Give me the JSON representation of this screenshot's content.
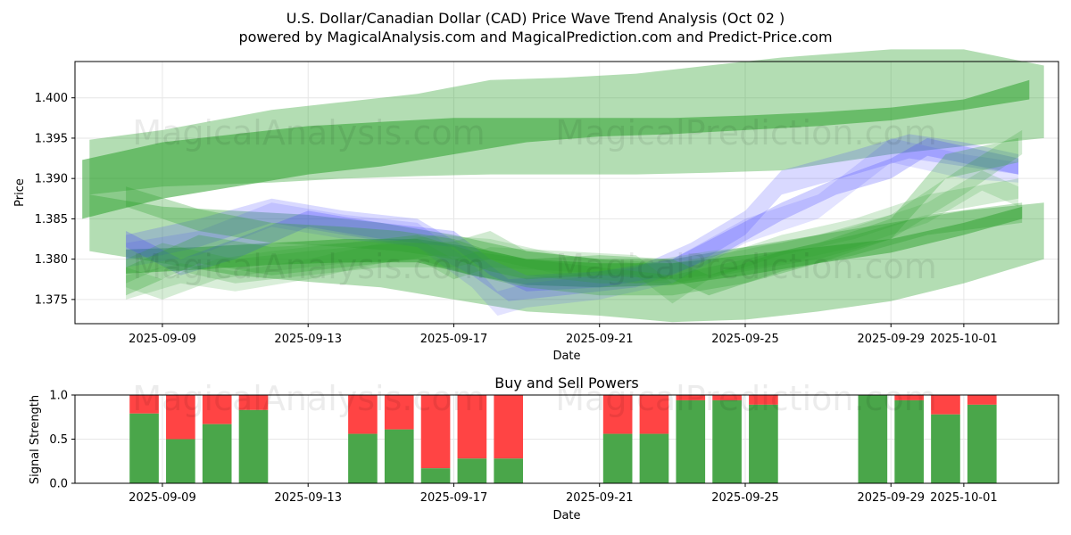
{
  "title_line1": "U.S. Dollar/Canadian Dollar (CAD) Price Wave Trend Analysis (Oct 02 )",
  "title_line2": "powered by MagicalAnalysis.com and MagicalPrediction.com and Predict-Price.com",
  "watermarks": [
    "MagicalAnalysis.com",
    "MagicalPrediction.com"
  ],
  "colors": {
    "green_band": "#2ca02c",
    "blue_band": "#4040ff",
    "buy": "#4aa64a",
    "sell": "#ff4444",
    "grid": "#e6e6e6"
  },
  "chart_data": [
    {
      "type": "area",
      "title": "",
      "xlabel": "Date",
      "ylabel": "Price",
      "x_start": "2025-09-07",
      "xlim_days": [
        -0.4,
        26.6
      ],
      "ylim": [
        1.372,
        1.4045
      ],
      "x_ticks": [
        {
          "day": 2,
          "label": "2025-09-09"
        },
        {
          "day": 6,
          "label": "2025-09-13"
        },
        {
          "day": 10,
          "label": "2025-09-17"
        },
        {
          "day": 14,
          "label": "2025-09-21"
        },
        {
          "day": 18,
          "label": "2025-09-25"
        },
        {
          "day": 22,
          "label": "2025-09-29"
        },
        {
          "day": 24,
          "label": "2025-10-01"
        }
      ],
      "y_ticks": [
        {
          "value": 1.375,
          "label": "1.375"
        },
        {
          "value": 1.38,
          "label": "1.380"
        },
        {
          "value": 1.385,
          "label": "1.385"
        },
        {
          "value": 1.39,
          "label": "1.390"
        },
        {
          "value": 1.395,
          "label": "1.395"
        },
        {
          "value": 1.4,
          "label": "1.400"
        }
      ],
      "series": [
        {
          "name": "upper-wide-band",
          "color": "green",
          "opacity": 0.36,
          "x": [
            0,
            2,
            5,
            7,
            9,
            11,
            13,
            15,
            17,
            19,
            22,
            24,
            26.2
          ],
          "upper": [
            1.3948,
            1.396,
            1.3985,
            1.3995,
            1.4005,
            1.4022,
            1.4025,
            1.403,
            1.404,
            1.405,
            1.406,
            1.406,
            1.404
          ],
          "lower": [
            1.388,
            1.389,
            1.3895,
            1.39,
            1.3903,
            1.3905,
            1.3905,
            1.3905,
            1.3907,
            1.391,
            1.393,
            1.394,
            1.395
          ]
        },
        {
          "name": "upper-narrow-band",
          "color": "green",
          "opacity": 0.55,
          "x": [
            -0.2,
            2,
            4,
            6,
            8,
            10,
            12,
            14,
            16,
            18,
            20,
            22,
            24,
            25.8
          ],
          "upper": [
            1.3923,
            1.3945,
            1.3955,
            1.3965,
            1.397,
            1.3975,
            1.3975,
            1.3975,
            1.3975,
            1.3978,
            1.3982,
            1.3988,
            1.3998,
            1.4022
          ],
          "lower": [
            1.385,
            1.3875,
            1.389,
            1.3905,
            1.3915,
            1.393,
            1.3945,
            1.3952,
            1.3955,
            1.396,
            1.3965,
            1.3972,
            1.3985,
            1.3998
          ]
        },
        {
          "name": "lower-wide-band",
          "color": "green",
          "opacity": 0.36,
          "x": [
            0,
            2,
            4,
            6,
            8,
            10,
            12,
            14,
            16,
            18,
            20,
            22,
            24,
            26.2
          ],
          "upper": [
            1.388,
            1.3865,
            1.386,
            1.3855,
            1.3845,
            1.383,
            1.381,
            1.38,
            1.38,
            1.3815,
            1.383,
            1.3845,
            1.386,
            1.387
          ],
          "lower": [
            1.381,
            1.3795,
            1.378,
            1.3772,
            1.3765,
            1.375,
            1.3735,
            1.373,
            1.3722,
            1.3725,
            1.3735,
            1.3748,
            1.377,
            1.38
          ]
        },
        {
          "name": "lower-narrow-band",
          "color": "green",
          "opacity": 0.5,
          "x": [
            1,
            3,
            5,
            7,
            9,
            10.5,
            12,
            14,
            16,
            18,
            20,
            22,
            24,
            25.6
          ],
          "upper": [
            1.3812,
            1.3815,
            1.382,
            1.3825,
            1.3825,
            1.3815,
            1.38,
            1.3795,
            1.3795,
            1.3805,
            1.3815,
            1.3825,
            1.3845,
            1.3865
          ],
          "lower": [
            1.3782,
            1.3787,
            1.3793,
            1.3796,
            1.3796,
            1.378,
            1.3768,
            1.3765,
            1.3768,
            1.378,
            1.3795,
            1.3808,
            1.383,
            1.385
          ]
        },
        {
          "name": "wave-blue-1",
          "color": "blue",
          "opacity": 0.2,
          "x": [
            1,
            2,
            3,
            5,
            7,
            9,
            10.5,
            11.5,
            13,
            15,
            16.5,
            18,
            19,
            21,
            22.5,
            24,
            25.5
          ],
          "upper": [
            1.383,
            1.384,
            1.385,
            1.3875,
            1.386,
            1.385,
            1.381,
            1.3775,
            1.378,
            1.379,
            1.382,
            1.386,
            1.391,
            1.3935,
            1.3955,
            1.3945,
            1.393
          ],
          "lower": [
            1.38,
            1.3805,
            1.3815,
            1.3845,
            1.383,
            1.3815,
            1.378,
            1.3748,
            1.3755,
            1.3765,
            1.379,
            1.383,
            1.388,
            1.3905,
            1.3925,
            1.3915,
            1.3905
          ]
        },
        {
          "name": "wave-blue-2",
          "color": "blue",
          "opacity": 0.25,
          "x": [
            1,
            2.5,
            4,
            6,
            8,
            10,
            11,
            12,
            14,
            16,
            17.5,
            19,
            20.5,
            22,
            23,
            25.5
          ],
          "upper": [
            1.3835,
            1.38,
            1.3825,
            1.386,
            1.3845,
            1.3835,
            1.38,
            1.378,
            1.3785,
            1.38,
            1.3835,
            1.387,
            1.39,
            1.3925,
            1.395,
            1.3925
          ],
          "lower": [
            1.3815,
            1.378,
            1.38,
            1.384,
            1.3825,
            1.3815,
            1.378,
            1.376,
            1.3765,
            1.378,
            1.381,
            1.3848,
            1.388,
            1.39,
            1.3928,
            1.3905
          ]
        },
        {
          "name": "wave-blue-3",
          "color": "blue",
          "opacity": 0.15,
          "x": [
            1,
            3,
            5,
            7,
            9,
            10.5,
            11.2,
            12,
            14,
            16,
            18,
            20,
            22,
            24,
            25.5
          ],
          "upper": [
            1.382,
            1.3835,
            1.387,
            1.3855,
            1.3845,
            1.3795,
            1.376,
            1.377,
            1.378,
            1.38,
            1.385,
            1.388,
            1.395,
            1.393,
            1.392
          ],
          "lower": [
            1.379,
            1.3805,
            1.384,
            1.3825,
            1.3815,
            1.3765,
            1.373,
            1.374,
            1.375,
            1.377,
            1.382,
            1.385,
            1.392,
            1.39,
            1.3895
          ]
        },
        {
          "name": "wave-green-1",
          "color": "green",
          "opacity": 0.22,
          "x": [
            1,
            2,
            4,
            6,
            8,
            10,
            11,
            12,
            14,
            16,
            18,
            20,
            22,
            24,
            25.6
          ],
          "upper": [
            1.38,
            1.382,
            1.38,
            1.381,
            1.3818,
            1.3822,
            1.3835,
            1.381,
            1.38,
            1.3795,
            1.3812,
            1.383,
            1.3855,
            1.3915,
            1.396
          ],
          "lower": [
            1.377,
            1.379,
            1.377,
            1.378,
            1.379,
            1.379,
            1.38,
            1.378,
            1.377,
            1.377,
            1.3785,
            1.38,
            1.3825,
            1.388,
            1.393
          ]
        },
        {
          "name": "wave-green-2",
          "color": "green",
          "opacity": 0.2,
          "x": [
            1,
            2,
            3.5,
            5,
            7,
            9,
            10,
            11,
            13,
            15,
            16,
            17,
            19,
            21,
            23,
            25.5
          ],
          "upper": [
            1.379,
            1.3775,
            1.38,
            1.381,
            1.382,
            1.3825,
            1.38,
            1.3815,
            1.381,
            1.3805,
            1.377,
            1.38,
            1.383,
            1.385,
            1.388,
            1.39
          ],
          "lower": [
            1.3765,
            1.375,
            1.3775,
            1.3785,
            1.3795,
            1.38,
            1.3775,
            1.379,
            1.3785,
            1.378,
            1.3745,
            1.3775,
            1.3805,
            1.3825,
            1.3855,
            1.3875
          ]
        },
        {
          "name": "wave-green-3",
          "color": "green",
          "opacity": 0.28,
          "x": [
            1,
            2,
            3,
            5,
            7,
            9,
            10.5,
            12,
            14,
            16,
            18,
            20,
            22,
            23.5,
            25.5
          ],
          "upper": [
            1.379,
            1.381,
            1.383,
            1.3815,
            1.382,
            1.383,
            1.381,
            1.38,
            1.379,
            1.378,
            1.38,
            1.382,
            1.385,
            1.393,
            1.395
          ],
          "lower": [
            1.3755,
            1.3775,
            1.3795,
            1.378,
            1.379,
            1.38,
            1.378,
            1.3765,
            1.3755,
            1.3755,
            1.377,
            1.3795,
            1.3825,
            1.39,
            1.392
          ]
        },
        {
          "name": "wave-green-4",
          "color": "green",
          "opacity": 0.18,
          "x": [
            1,
            2.5,
            4,
            6,
            8,
            9.5,
            11,
            13,
            15,
            17,
            19,
            21,
            23,
            24.5,
            25.5
          ],
          "upper": [
            1.378,
            1.3795,
            1.3785,
            1.38,
            1.382,
            1.383,
            1.3825,
            1.3805,
            1.3795,
            1.381,
            1.382,
            1.384,
            1.387,
            1.391,
            1.389
          ],
          "lower": [
            1.375,
            1.377,
            1.376,
            1.3775,
            1.3795,
            1.3805,
            1.38,
            1.378,
            1.377,
            1.378,
            1.3795,
            1.3815,
            1.3845,
            1.3885,
            1.3865
          ]
        },
        {
          "name": "wave-green-5",
          "color": "green",
          "opacity": 0.3,
          "x": [
            1,
            3,
            5,
            7,
            8.5,
            10,
            11,
            12,
            14,
            16,
            17,
            19,
            21,
            23,
            25.6
          ],
          "upper": [
            1.389,
            1.3862,
            1.3845,
            1.384,
            1.3835,
            1.3825,
            1.381,
            1.38,
            1.3805,
            1.38,
            1.378,
            1.381,
            1.383,
            1.3855,
            1.387
          ],
          "lower": [
            1.3865,
            1.3835,
            1.382,
            1.3815,
            1.381,
            1.38,
            1.3785,
            1.3775,
            1.378,
            1.3775,
            1.3755,
            1.3785,
            1.3805,
            1.383,
            1.3845
          ]
        }
      ]
    },
    {
      "type": "bar",
      "title": "Buy and Sell Powers",
      "xlabel": "Date",
      "ylabel": "Signal Strength",
      "ylim": [
        0,
        1
      ],
      "y_ticks": [
        {
          "value": 0,
          "label": "0.0"
        },
        {
          "value": 0.5,
          "label": "0.5"
        },
        {
          "value": 1,
          "label": "1.0"
        }
      ],
      "x_ticks": [
        {
          "day": 2,
          "label": "2025-09-09"
        },
        {
          "day": 6,
          "label": "2025-09-13"
        },
        {
          "day": 10,
          "label": "2025-09-17"
        },
        {
          "day": 14,
          "label": "2025-09-21"
        },
        {
          "day": 18,
          "label": "2025-09-25"
        },
        {
          "day": 22,
          "label": "2025-09-29"
        },
        {
          "day": 24,
          "label": "2025-10-01"
        }
      ],
      "series_names": [
        "Buy",
        "Sell"
      ],
      "bars": [
        {
          "day": 1.5,
          "buy": 0.79
        },
        {
          "day": 2.5,
          "buy": 0.5
        },
        {
          "day": 3.5,
          "buy": 0.67
        },
        {
          "day": 4.5,
          "buy": 0.83
        },
        {
          "day": 7.5,
          "buy": 0.56
        },
        {
          "day": 8.5,
          "buy": 0.61
        },
        {
          "day": 9.5,
          "buy": 0.17
        },
        {
          "day": 10.5,
          "buy": 0.28
        },
        {
          "day": 11.5,
          "buy": 0.28
        },
        {
          "day": 14.5,
          "buy": 0.56
        },
        {
          "day": 15.5,
          "buy": 0.56
        },
        {
          "day": 16.5,
          "buy": 0.94
        },
        {
          "day": 17.5,
          "buy": 0.94
        },
        {
          "day": 18.5,
          "buy": 0.89
        },
        {
          "day": 21.5,
          "buy": 1.0
        },
        {
          "day": 22.5,
          "buy": 0.94
        },
        {
          "day": 23.5,
          "buy": 0.78
        },
        {
          "day": 24.5,
          "buy": 0.89
        }
      ]
    }
  ]
}
